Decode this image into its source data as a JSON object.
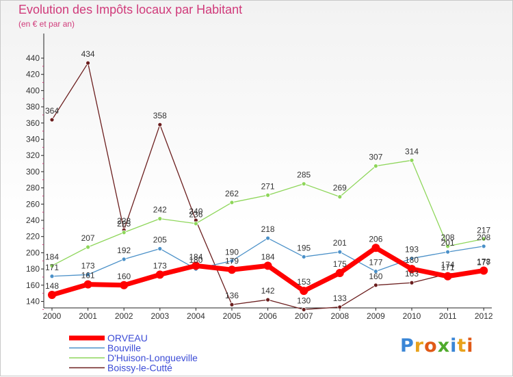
{
  "header": {
    "title": "Evolution des Impôts locaux par Habitant",
    "subtitle": "(en € et par an)"
  },
  "logo": {
    "text": "Proxiti",
    "letter_colors": [
      "#3a86d6",
      "#e8a21c",
      "#e05a17",
      "#4faa2c",
      "#3a86d6",
      "#e8a21c",
      "#e05a17"
    ]
  },
  "chart_data": {
    "type": "line",
    "title": "Evolution des Impôts locaux par Habitant",
    "subtitle": "(en € et par an)",
    "xlabel": "",
    "ylabel": "",
    "x": [
      "2000",
      "2001",
      "2002",
      "2003",
      "2004",
      "2005",
      "2006",
      "2007",
      "2008",
      "2009",
      "2010",
      "2011",
      "2012"
    ],
    "ylim": [
      130,
      440
    ],
    "yticks": [
      140,
      160,
      180,
      200,
      220,
      240,
      260,
      280,
      300,
      320,
      340,
      360,
      380,
      400,
      420,
      440
    ],
    "grid": false,
    "legend": "bottom-left",
    "series": [
      {
        "name": "ORVEAU",
        "color": "#ff0000",
        "values": [
          148,
          161,
          160,
          173,
          184,
          179,
          184,
          153,
          175,
          206,
          180,
          171,
          178
        ]
      },
      {
        "name": "Bouville",
        "color": "#4a90c8",
        "values": [
          171,
          173,
          192,
          205,
          180,
          190,
          218,
          195,
          201,
          177,
          193,
          201,
          208
        ]
      },
      {
        "name": "D'Huison-Longueville",
        "color": "#8ed65a",
        "values": [
          184,
          207,
          225,
          242,
          236,
          262,
          271,
          285,
          269,
          307,
          314,
          208,
          217
        ]
      },
      {
        "name": "Boissy-le-Cutté",
        "color": "#6b1e1e",
        "values": [
          364,
          434,
          228,
          358,
          240,
          136,
          142,
          130,
          133,
          160,
          163,
          174,
          177
        ]
      }
    ]
  }
}
